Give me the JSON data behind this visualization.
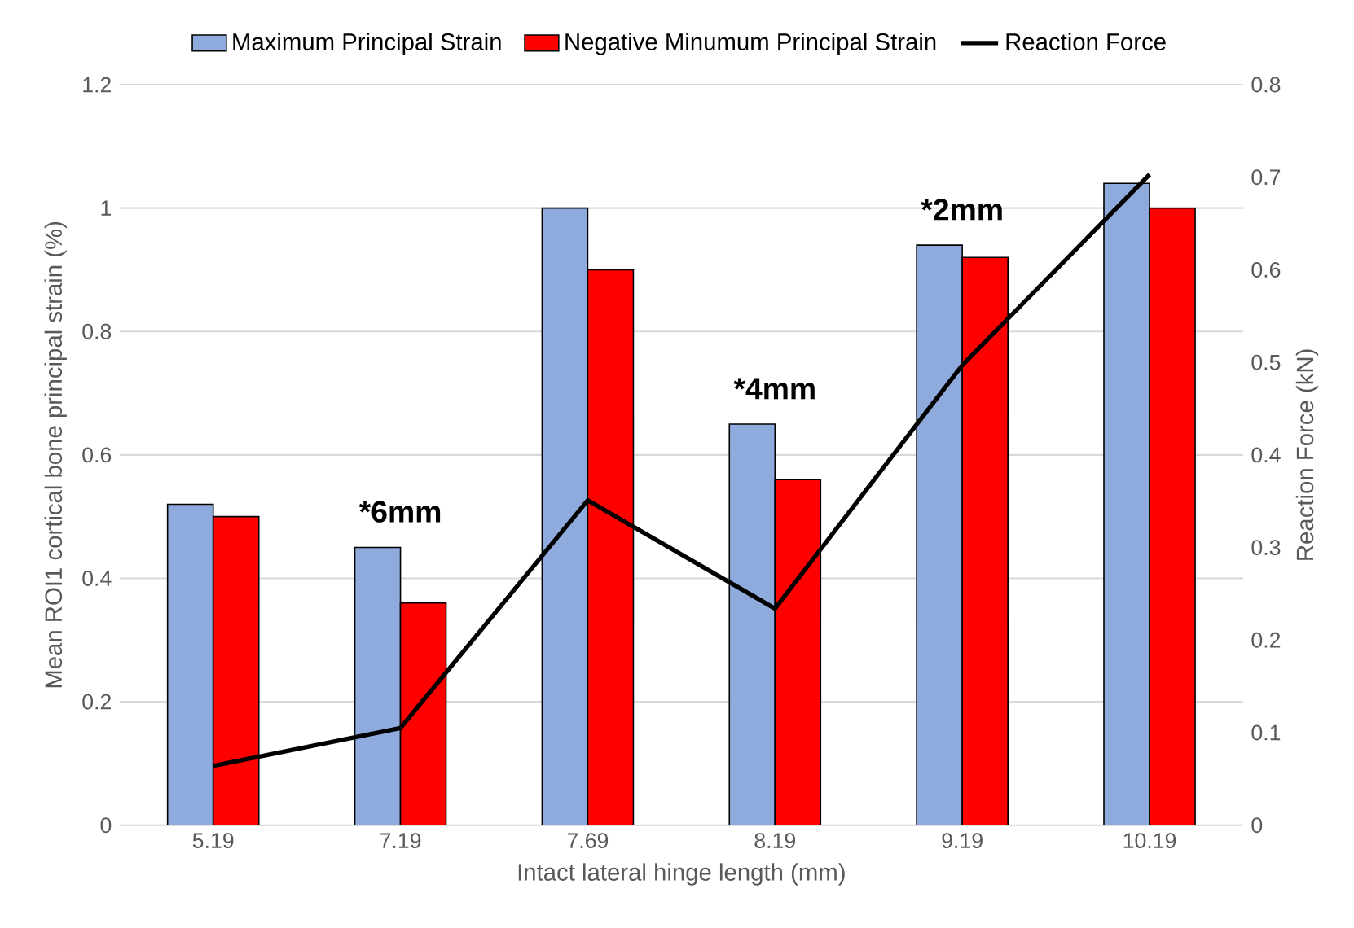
{
  "chart_data": {
    "type": "bar",
    "xlabel": "Intact lateral hinge length (mm)",
    "ylabel": "Mean ROI1 cortical bone principal strain (%)",
    "y2label": "Reaction Force (kN)",
    "categories": [
      "5.19",
      "7.19",
      "7.69",
      "8.19",
      "9.19",
      "10.19"
    ],
    "series": [
      {
        "name": "Maximum Principal Strain",
        "color": "#8faadc",
        "values": [
          0.52,
          0.45,
          1.0,
          0.65,
          0.94,
          1.04
        ]
      },
      {
        "name": "Negative Minumum Principal Strain",
        "color": "#ff0000",
        "values": [
          0.5,
          0.36,
          0.9,
          0.56,
          0.92,
          1.0
        ]
      },
      {
        "name": "Reaction Force",
        "type": "line",
        "axis": "y2",
        "color": "#000000",
        "values": [
          0.064,
          0.105,
          0.351,
          0.234,
          0.497,
          0.703
        ]
      }
    ],
    "ylim": [
      0,
      1.2
    ],
    "yticks": [
      0,
      0.2,
      0.4,
      0.6,
      0.8,
      1,
      1.2
    ],
    "y2lim": [
      0,
      0.8
    ],
    "y2ticks": [
      0,
      0.1,
      0.2,
      0.3,
      0.4,
      0.5,
      0.6,
      0.7,
      0.8
    ],
    "grid": "y",
    "legend": "top",
    "marker": "none",
    "annotations": [
      {
        "text": "*6mm",
        "x": "7.19",
        "y": 0.45
      },
      {
        "text": "*4mm",
        "x": "8.19",
        "y": 0.65
      },
      {
        "text": "*2mm",
        "x": "9.19",
        "y": 0.94
      }
    ]
  }
}
